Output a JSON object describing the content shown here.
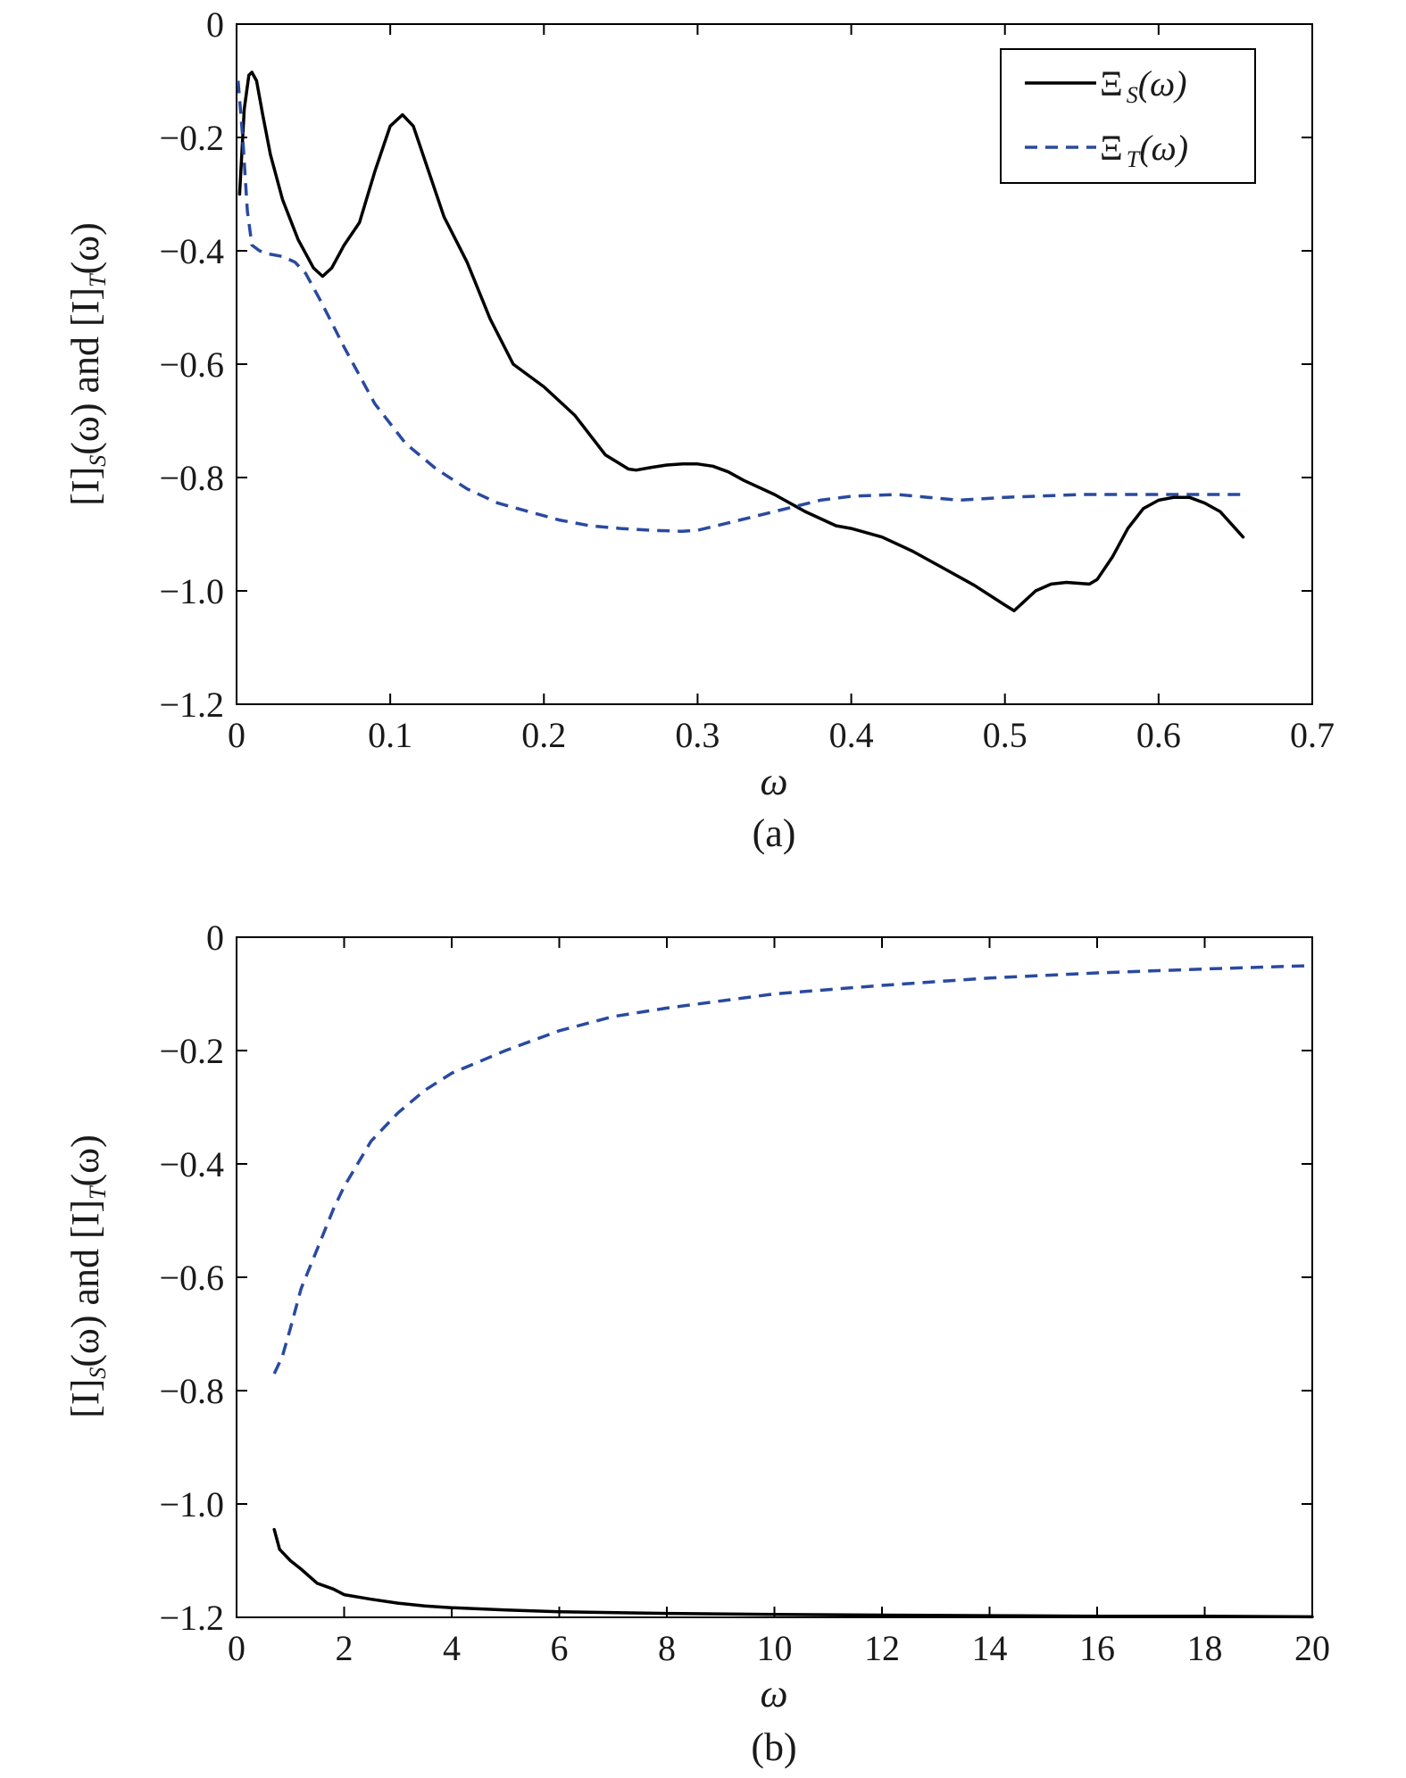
{
  "chart_data": [
    {
      "type": "line",
      "panel_label": "(a)",
      "xlabel": "ω",
      "ylabel": "[I]S(ω) and [I]T(ω)",
      "ylabel_parts": {
        "pre": "[I]",
        "sub1": "S",
        "mid": "(ω) and [I]",
        "sub2": "T",
        "post": "(ω)"
      },
      "xlim": [
        0,
        0.7
      ],
      "ylim": [
        -1.2,
        0
      ],
      "xticks": [
        0,
        0.1,
        0.2,
        0.3,
        0.4,
        0.5,
        0.6,
        0.7
      ],
      "xtick_labels": [
        "0",
        "0.1",
        "0.2",
        "0.3",
        "0.4",
        "0.5",
        "0.6",
        "0.7"
      ],
      "yticks": [
        0,
        -0.2,
        -0.4,
        -0.6,
        -0.8,
        -1.0,
        -1.2
      ],
      "ytick_labels": [
        "0",
        "−0.2",
        "−0.4",
        "−0.6",
        "−0.8",
        "−1.0",
        "−1.2"
      ],
      "grid": false,
      "legend": {
        "position": "top-right",
        "entries": [
          {
            "prefix": "Ξ",
            "sub": "S",
            "suffix": "(ω)"
          },
          {
            "prefix": "Ξ",
            "sub": "T",
            "suffix": "(ω)"
          }
        ]
      },
      "series": [
        {
          "name": "ΞS(ω)",
          "color": "#000000",
          "style": "solid",
          "x": [
            0.002,
            0.005,
            0.008,
            0.01,
            0.013,
            0.017,
            0.022,
            0.03,
            0.04,
            0.05,
            0.056,
            0.062,
            0.07,
            0.08,
            0.09,
            0.1,
            0.108,
            0.115,
            0.125,
            0.135,
            0.15,
            0.165,
            0.18,
            0.2,
            0.22,
            0.24,
            0.255,
            0.26,
            0.27,
            0.28,
            0.29,
            0.3,
            0.31,
            0.32,
            0.33,
            0.35,
            0.37,
            0.39,
            0.4,
            0.42,
            0.44,
            0.46,
            0.48,
            0.5,
            0.506,
            0.51,
            0.52,
            0.53,
            0.54,
            0.55,
            0.555,
            0.56,
            0.57,
            0.58,
            0.59,
            0.6,
            0.61,
            0.62,
            0.63,
            0.64,
            0.655
          ],
          "y": [
            -0.3,
            -0.15,
            -0.09,
            -0.085,
            -0.1,
            -0.16,
            -0.23,
            -0.31,
            -0.38,
            -0.43,
            -0.445,
            -0.43,
            -0.39,
            -0.35,
            -0.26,
            -0.18,
            -0.16,
            -0.18,
            -0.26,
            -0.34,
            -0.42,
            -0.52,
            -0.6,
            -0.64,
            -0.69,
            -0.76,
            -0.785,
            -0.787,
            -0.782,
            -0.778,
            -0.776,
            -0.776,
            -0.78,
            -0.79,
            -0.805,
            -0.83,
            -0.86,
            -0.885,
            -0.89,
            -0.905,
            -0.93,
            -0.96,
            -0.99,
            -1.025,
            -1.035,
            -1.025,
            -1.0,
            -0.988,
            -0.985,
            -0.987,
            -0.988,
            -0.98,
            -0.94,
            -0.89,
            -0.855,
            -0.84,
            -0.835,
            -0.835,
            -0.845,
            -0.86,
            -0.905
          ]
        },
        {
          "name": "ΞT(ω)",
          "color": "#2a4aa0",
          "style": "dashed",
          "x": [
            0.001,
            0.004,
            0.007,
            0.01,
            0.015,
            0.02,
            0.03,
            0.038,
            0.045,
            0.055,
            0.07,
            0.09,
            0.11,
            0.13,
            0.15,
            0.17,
            0.19,
            0.21,
            0.23,
            0.25,
            0.27,
            0.29,
            0.3,
            0.32,
            0.35,
            0.38,
            0.4,
            0.43,
            0.45,
            0.47,
            0.5,
            0.55,
            0.6,
            0.655
          ],
          "y": [
            -0.1,
            -0.2,
            -0.33,
            -0.39,
            -0.4,
            -0.405,
            -0.41,
            -0.42,
            -0.44,
            -0.49,
            -0.57,
            -0.67,
            -0.74,
            -0.785,
            -0.82,
            -0.845,
            -0.86,
            -0.875,
            -0.885,
            -0.89,
            -0.893,
            -0.895,
            -0.893,
            -0.88,
            -0.86,
            -0.84,
            -0.833,
            -0.83,
            -0.835,
            -0.84,
            -0.835,
            -0.83,
            -0.83,
            -0.83
          ]
        }
      ]
    },
    {
      "type": "line",
      "panel_label": "(b)",
      "xlabel": "ω",
      "ylabel": "[I]S(ω) and [I]T(ω)",
      "ylabel_parts": {
        "pre": "[I]",
        "sub1": "S",
        "mid": "(ω) and [I]",
        "sub2": "T",
        "post": "(ω)"
      },
      "xlim": [
        0,
        20
      ],
      "ylim": [
        -1.2,
        0
      ],
      "xticks": [
        0,
        2,
        4,
        6,
        8,
        10,
        12,
        14,
        16,
        18,
        20
      ],
      "xtick_labels": [
        "0",
        "2",
        "4",
        "6",
        "8",
        "10",
        "12",
        "14",
        "16",
        "18",
        "20"
      ],
      "yticks": [
        0,
        -0.2,
        -0.4,
        -0.6,
        -0.8,
        -1.0,
        -1.2
      ],
      "ytick_labels": [
        "0",
        "−0.2",
        "−0.4",
        "−0.6",
        "−0.8",
        "−1.0",
        "−1.2"
      ],
      "grid": false,
      "series": [
        {
          "name": "ΞS(ω)",
          "color": "#000000",
          "style": "solid",
          "x": [
            0.7,
            0.8,
            1.0,
            1.2,
            1.5,
            1.8,
            2.0,
            2.5,
            3.0,
            3.5,
            4.0,
            5.0,
            6.0,
            8.0,
            10.0,
            12.0,
            14.0,
            16.0,
            18.0,
            20.0
          ],
          "y": [
            -1.045,
            -1.08,
            -1.1,
            -1.115,
            -1.14,
            -1.15,
            -1.16,
            -1.168,
            -1.175,
            -1.18,
            -1.183,
            -1.187,
            -1.19,
            -1.193,
            -1.195,
            -1.196,
            -1.197,
            -1.198,
            -1.198,
            -1.199
          ]
        },
        {
          "name": "ΞT(ω)",
          "color": "#2a4aa0",
          "style": "dashed",
          "x": [
            0.7,
            0.85,
            1.0,
            1.2,
            1.5,
            1.8,
            2.0,
            2.5,
            3.0,
            3.5,
            4.0,
            5.0,
            6.0,
            7.0,
            8.0,
            10.0,
            12.0,
            14.0,
            16.0,
            18.0,
            20.0
          ],
          "y": [
            -0.77,
            -0.74,
            -0.69,
            -0.62,
            -0.55,
            -0.48,
            -0.44,
            -0.36,
            -0.31,
            -0.27,
            -0.24,
            -0.2,
            -0.165,
            -0.14,
            -0.125,
            -0.1,
            -0.085,
            -0.072,
            -0.063,
            -0.056,
            -0.05
          ]
        }
      ]
    }
  ]
}
